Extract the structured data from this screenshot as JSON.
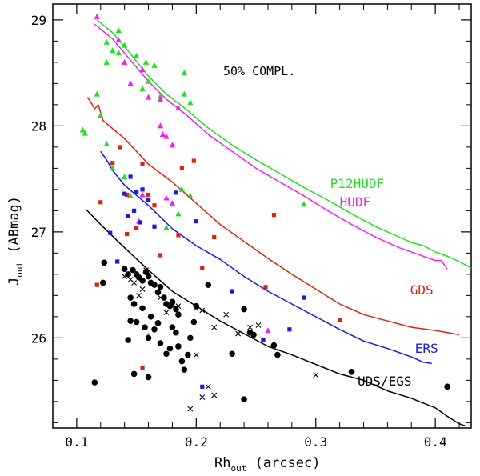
{
  "chart_data": {
    "type": "scatter",
    "title": "",
    "annotation": "50% COMPL.",
    "xlabel": {
      "main": "Rh",
      "sub": "out",
      "unit": "(arcsec)"
    },
    "ylabel": {
      "main": "J",
      "sub": "out",
      "unit": "(ABmag)"
    },
    "xlim": [
      0.08,
      0.43
    ],
    "ylim": [
      25.15,
      29.15
    ],
    "y_inverted": true,
    "xticks": [
      0.1,
      0.2,
      0.3,
      0.4
    ],
    "xtick_labels": [
      "0.1",
      "0.2",
      "0.3",
      "0.4"
    ],
    "yticks": [
      26,
      27,
      28,
      29
    ],
    "ytick_labels": [
      "26",
      "27",
      "28",
      "29"
    ],
    "colors": {
      "green": "#22dd22",
      "magenta": "#ee22ee",
      "red": "#dd2211",
      "blue": "#1a1add",
      "black": "#000000"
    },
    "curves": [
      {
        "name": "P12HUDF",
        "label": "P12HUDF",
        "color": "#22dd22",
        "points": [
          [
            0.117,
            29.0
          ],
          [
            0.13,
            28.88
          ],
          [
            0.145,
            28.68
          ],
          [
            0.16,
            28.47
          ],
          [
            0.175,
            28.3
          ],
          [
            0.19,
            28.17
          ],
          [
            0.21,
            27.98
          ],
          [
            0.23,
            27.82
          ],
          [
            0.25,
            27.68
          ],
          [
            0.27,
            27.55
          ],
          [
            0.29,
            27.42
          ],
          [
            0.31,
            27.3
          ],
          [
            0.33,
            27.17
          ],
          [
            0.35,
            27.05
          ],
          [
            0.37,
            26.95
          ],
          [
            0.38,
            26.9
          ],
          [
            0.39,
            26.87
          ],
          [
            0.4,
            26.81
          ],
          [
            0.41,
            26.77
          ],
          [
            0.42,
            26.72
          ],
          [
            0.43,
            26.66
          ]
        ]
      },
      {
        "name": "HUDF",
        "label": "HUDF",
        "color": "#ee22ee",
        "points": [
          [
            0.115,
            28.96
          ],
          [
            0.13,
            28.82
          ],
          [
            0.145,
            28.62
          ],
          [
            0.16,
            28.42
          ],
          [
            0.175,
            28.25
          ],
          [
            0.19,
            28.12
          ],
          [
            0.21,
            27.92
          ],
          [
            0.23,
            27.76
          ],
          [
            0.25,
            27.6
          ],
          [
            0.27,
            27.47
          ],
          [
            0.29,
            27.34
          ],
          [
            0.31,
            27.2
          ],
          [
            0.33,
            27.07
          ],
          [
            0.35,
            26.95
          ],
          [
            0.37,
            26.85
          ],
          [
            0.39,
            26.77
          ],
          [
            0.4,
            26.73
          ],
          [
            0.405,
            26.73
          ],
          [
            0.41,
            26.65
          ]
        ]
      },
      {
        "name": "GDS",
        "label": "GDS",
        "color": "#dd2211",
        "points": [
          [
            0.109,
            28.27
          ],
          [
            0.112,
            28.22
          ],
          [
            0.115,
            28.16
          ],
          [
            0.118,
            28.2
          ],
          [
            0.122,
            28.05
          ],
          [
            0.14,
            27.88
          ],
          [
            0.16,
            27.64
          ],
          [
            0.18,
            27.47
          ],
          [
            0.2,
            27.27
          ],
          [
            0.22,
            27.07
          ],
          [
            0.24,
            26.91
          ],
          [
            0.26,
            26.75
          ],
          [
            0.28,
            26.6
          ],
          [
            0.3,
            26.46
          ],
          [
            0.32,
            26.32
          ],
          [
            0.34,
            26.22
          ],
          [
            0.36,
            26.16
          ],
          [
            0.38,
            26.1
          ],
          [
            0.4,
            26.07
          ],
          [
            0.42,
            26.03
          ]
        ]
      },
      {
        "name": "ERS",
        "label": "ERS",
        "color": "#1a1add",
        "points": [
          [
            0.12,
            27.76
          ],
          [
            0.125,
            27.68
          ],
          [
            0.13,
            27.58
          ],
          [
            0.14,
            27.44
          ],
          [
            0.16,
            27.25
          ],
          [
            0.18,
            27.03
          ],
          [
            0.2,
            26.87
          ],
          [
            0.22,
            26.74
          ],
          [
            0.24,
            26.58
          ],
          [
            0.26,
            26.44
          ],
          [
            0.28,
            26.32
          ],
          [
            0.3,
            26.2
          ],
          [
            0.32,
            26.08
          ],
          [
            0.34,
            25.97
          ],
          [
            0.36,
            25.9
          ],
          [
            0.38,
            25.82
          ],
          [
            0.39,
            25.77
          ],
          [
            0.397,
            25.76
          ]
        ]
      },
      {
        "name": "UDS/EGS",
        "label": "UDS/EGS",
        "color": "#000000",
        "points": [
          [
            0.108,
            27.21
          ],
          [
            0.12,
            27.07
          ],
          [
            0.14,
            26.85
          ],
          [
            0.16,
            26.64
          ],
          [
            0.18,
            26.44
          ],
          [
            0.2,
            26.3
          ],
          [
            0.22,
            26.16
          ],
          [
            0.24,
            26.04
          ],
          [
            0.26,
            25.92
          ],
          [
            0.28,
            25.84
          ],
          [
            0.3,
            25.75
          ],
          [
            0.32,
            25.66
          ],
          [
            0.34,
            25.6
          ],
          [
            0.36,
            25.5
          ],
          [
            0.38,
            25.43
          ],
          [
            0.4,
            25.34
          ],
          [
            0.41,
            25.26
          ],
          [
            0.42,
            25.19
          ],
          [
            0.425,
            25.17
          ]
        ]
      }
    ],
    "series": [
      {
        "name": "P12HUDF sources",
        "marker": "triangle",
        "color": "#22dd22",
        "points": [
          [
            0.117,
            28.3
          ],
          [
            0.12,
            28.1
          ],
          [
            0.125,
            28.79
          ],
          [
            0.125,
            28.6
          ],
          [
            0.13,
            28.71
          ],
          [
            0.135,
            28.9
          ],
          [
            0.135,
            28.69
          ],
          [
            0.14,
            28.76
          ],
          [
            0.14,
            28.6
          ],
          [
            0.15,
            28.66
          ],
          [
            0.155,
            28.35
          ],
          [
            0.158,
            28.6
          ],
          [
            0.16,
            28.42
          ],
          [
            0.165,
            28.57
          ],
          [
            0.17,
            28.28
          ],
          [
            0.19,
            28.5
          ],
          [
            0.19,
            28.3
          ],
          [
            0.195,
            28.22
          ],
          [
            0.105,
            27.96
          ],
          [
            0.107,
            27.93
          ],
          [
            0.125,
            27.83
          ],
          [
            0.13,
            27.6
          ],
          [
            0.14,
            27.52
          ],
          [
            0.145,
            27.34
          ],
          [
            0.188,
            27.4
          ],
          [
            0.195,
            27.34
          ],
          [
            0.185,
            27.17
          ],
          [
            0.175,
            27.04
          ],
          [
            0.29,
            27.26
          ],
          [
            0.16,
            26.02
          ]
        ]
      },
      {
        "name": "HUDF sources",
        "marker": "triangle",
        "color": "#ee22ee",
        "points": [
          [
            0.117,
            29.03
          ],
          [
            0.135,
            28.81
          ],
          [
            0.14,
            28.6
          ],
          [
            0.145,
            28.4
          ],
          [
            0.155,
            28.53
          ],
          [
            0.16,
            28.27
          ],
          [
            0.17,
            28.25
          ],
          [
            0.17,
            28.0
          ],
          [
            0.172,
            27.92
          ],
          [
            0.175,
            27.9
          ],
          [
            0.18,
            27.82
          ],
          [
            0.185,
            28.17
          ],
          [
            0.155,
            27.35
          ],
          [
            0.175,
            27.32
          ],
          [
            0.18,
            27.27
          ],
          [
            0.152,
            27.1
          ],
          [
            0.26,
            26.07
          ]
        ]
      },
      {
        "name": "GDS sources",
        "marker": "square",
        "color": "#dd2211",
        "points": [
          [
            0.13,
            27.65
          ],
          [
            0.136,
            27.8
          ],
          [
            0.155,
            27.64
          ],
          [
            0.16,
            27.35
          ],
          [
            0.188,
            27.6
          ],
          [
            0.198,
            27.67
          ],
          [
            0.12,
            27.28
          ],
          [
            0.142,
            27.35
          ],
          [
            0.165,
            27.25
          ],
          [
            0.142,
            26.98
          ],
          [
            0.15,
            27.04
          ],
          [
            0.185,
            26.97
          ],
          [
            0.17,
            26.78
          ],
          [
            0.205,
            26.66
          ],
          [
            0.215,
            26.95
          ],
          [
            0.265,
            27.16
          ],
          [
            0.258,
            26.48
          ],
          [
            0.117,
            26.5
          ],
          [
            0.155,
            25.72
          ],
          [
            0.32,
            26.17
          ]
        ]
      },
      {
        "name": "ERS sources",
        "marker": "square",
        "color": "#1a1add",
        "points": [
          [
            0.14,
            27.36
          ],
          [
            0.143,
            27.15
          ],
          [
            0.148,
            27.2
          ],
          [
            0.15,
            27.38
          ],
          [
            0.155,
            27.4
          ],
          [
            0.16,
            27.3
          ],
          [
            0.145,
            27.52
          ],
          [
            0.2,
            27.1
          ],
          [
            0.165,
            27.05
          ],
          [
            0.128,
            26.99
          ],
          [
            0.134,
            26.72
          ],
          [
            0.153,
            27.09
          ],
          [
            0.23,
            26.44
          ],
          [
            0.29,
            26.38
          ],
          [
            0.278,
            26.08
          ],
          [
            0.256,
            25.98
          ],
          [
            0.205,
            25.54
          ],
          [
            0.183,
            27.37
          ]
        ]
      },
      {
        "name": "UDS/EGS dots",
        "marker": "circle",
        "color": "#000000",
        "points": [
          [
            0.123,
            26.71
          ],
          [
            0.122,
            26.52
          ],
          [
            0.14,
            26.65
          ],
          [
            0.143,
            26.6
          ],
          [
            0.147,
            26.64
          ],
          [
            0.15,
            26.6
          ],
          [
            0.152,
            26.57
          ],
          [
            0.155,
            26.54
          ],
          [
            0.158,
            26.62
          ],
          [
            0.16,
            26.58
          ],
          [
            0.162,
            26.52
          ],
          [
            0.165,
            26.5
          ],
          [
            0.168,
            26.43
          ],
          [
            0.17,
            26.48
          ],
          [
            0.173,
            26.38
          ],
          [
            0.175,
            26.32
          ],
          [
            0.178,
            26.3
          ],
          [
            0.18,
            26.34
          ],
          [
            0.183,
            26.27
          ],
          [
            0.185,
            26.22
          ],
          [
            0.145,
            26.38
          ],
          [
            0.148,
            26.32
          ],
          [
            0.15,
            26.15
          ],
          [
            0.155,
            26.28
          ],
          [
            0.157,
            26.1
          ],
          [
            0.16,
            26.0
          ],
          [
            0.162,
            26.2
          ],
          [
            0.165,
            26.08
          ],
          [
            0.168,
            26.14
          ],
          [
            0.17,
            25.95
          ],
          [
            0.175,
            25.85
          ],
          [
            0.178,
            25.9
          ],
          [
            0.18,
            26.1
          ],
          [
            0.183,
            26.05
          ],
          [
            0.185,
            25.92
          ],
          [
            0.188,
            25.78
          ],
          [
            0.19,
            25.7
          ],
          [
            0.193,
            25.84
          ],
          [
            0.195,
            26.0
          ],
          [
            0.198,
            26.15
          ],
          [
            0.145,
            26.16
          ],
          [
            0.143,
            25.98
          ],
          [
            0.148,
            25.66
          ],
          [
            0.16,
            25.63
          ],
          [
            0.24,
            26.27
          ],
          [
            0.245,
            26.05
          ],
          [
            0.248,
            26.03
          ],
          [
            0.23,
            25.85
          ],
          [
            0.24,
            25.42
          ],
          [
            0.265,
            25.93
          ],
          [
            0.268,
            25.84
          ],
          [
            0.33,
            25.68
          ],
          [
            0.41,
            25.54
          ],
          [
            0.115,
            25.58
          ],
          [
            0.2,
            26.3
          ],
          [
            0.21,
            26.5
          ]
        ]
      },
      {
        "name": "UDS/EGS crosses",
        "marker": "cross",
        "color": "#000000",
        "points": [
          [
            0.14,
            26.58
          ],
          [
            0.145,
            26.55
          ],
          [
            0.152,
            26.4
          ],
          [
            0.155,
            26.46
          ],
          [
            0.158,
            26.64
          ],
          [
            0.16,
            26.6
          ],
          [
            0.148,
            26.52
          ],
          [
            0.17,
            26.38
          ],
          [
            0.175,
            26.24
          ],
          [
            0.18,
            26.3
          ],
          [
            0.185,
            26.3
          ],
          [
            0.2,
            26.28
          ],
          [
            0.205,
            26.26
          ],
          [
            0.215,
            26.1
          ],
          [
            0.225,
            26.22
          ],
          [
            0.235,
            26.04
          ],
          [
            0.245,
            26.1
          ],
          [
            0.252,
            26.12
          ],
          [
            0.2,
            25.84
          ],
          [
            0.21,
            25.54
          ],
          [
            0.205,
            25.44
          ],
          [
            0.195,
            25.33
          ],
          [
            0.215,
            25.46
          ],
          [
            0.3,
            25.65
          ]
        ]
      }
    ]
  }
}
